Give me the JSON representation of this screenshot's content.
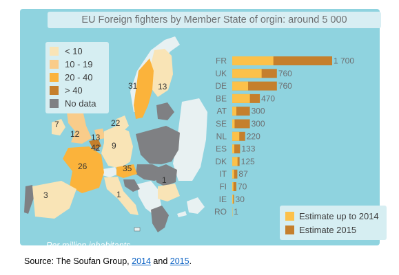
{
  "title": "EU Foreign fighters by Member State of orgin: around 5 000",
  "colors": {
    "panel": "#8fd3df",
    "box": "#d6eef2",
    "lt10": "#f9e4b6",
    "r10_19": "#f9cc8a",
    "r20_40": "#fbb33b",
    "gt40": "#c57f2c",
    "nodata": "#7f8083",
    "nonEU": "#e8f1f2",
    "estimate2014": "#fcc14a",
    "estimate2015": "#c57f2c"
  },
  "map_legend": [
    {
      "label": "< 10",
      "color": "#f9e4b6"
    },
    {
      "label": "10 - 19",
      "color": "#f9cc8a"
    },
    {
      "label": "20 - 40",
      "color": "#fbb33b"
    },
    {
      "label": "> 40",
      "color": "#c57f2c"
    },
    {
      "label": "No data",
      "color": "#7f8083"
    }
  ],
  "map_values": {
    "FI": "13",
    "SE": "31",
    "DK": "22",
    "IE": "7",
    "UK": "12",
    "NL": "13",
    "BE": "42",
    "DE": "9",
    "FR": "26",
    "AT": "35",
    "ES": "3",
    "IT": "1",
    "BG": "1"
  },
  "footnote": "Per million inhabitants",
  "chart_data": {
    "type": "bar",
    "stacked_overlap": true,
    "categories": [
      "FR",
      "UK",
      "DE",
      "BE",
      "AT",
      "SE",
      "NL",
      "ES",
      "DK",
      "IT",
      "FI",
      "IE",
      "RO"
    ],
    "series": [
      {
        "name": "Estimate up to 2014",
        "values": [
          700,
          500,
          270,
          300,
          70,
          40,
          120,
          35,
          90,
          30,
          20,
          15,
          1
        ]
      },
      {
        "name": "Estimate 2015",
        "values": [
          1700,
          760,
          760,
          470,
          300,
          300,
          220,
          133,
          125,
          87,
          70,
          30,
          1
        ]
      }
    ],
    "labels": [
      "1 700",
      "760",
      "760",
      "470",
      "300",
      "300",
      "220",
      "133",
      "125",
      "87",
      "70",
      "30",
      "1"
    ],
    "xlim": [
      0,
      1700
    ]
  },
  "source": {
    "prefix": "Source: The Soufan Group, ",
    "link1": "2014",
    "mid": " and ",
    "link2": "2015",
    "suffix": "."
  }
}
